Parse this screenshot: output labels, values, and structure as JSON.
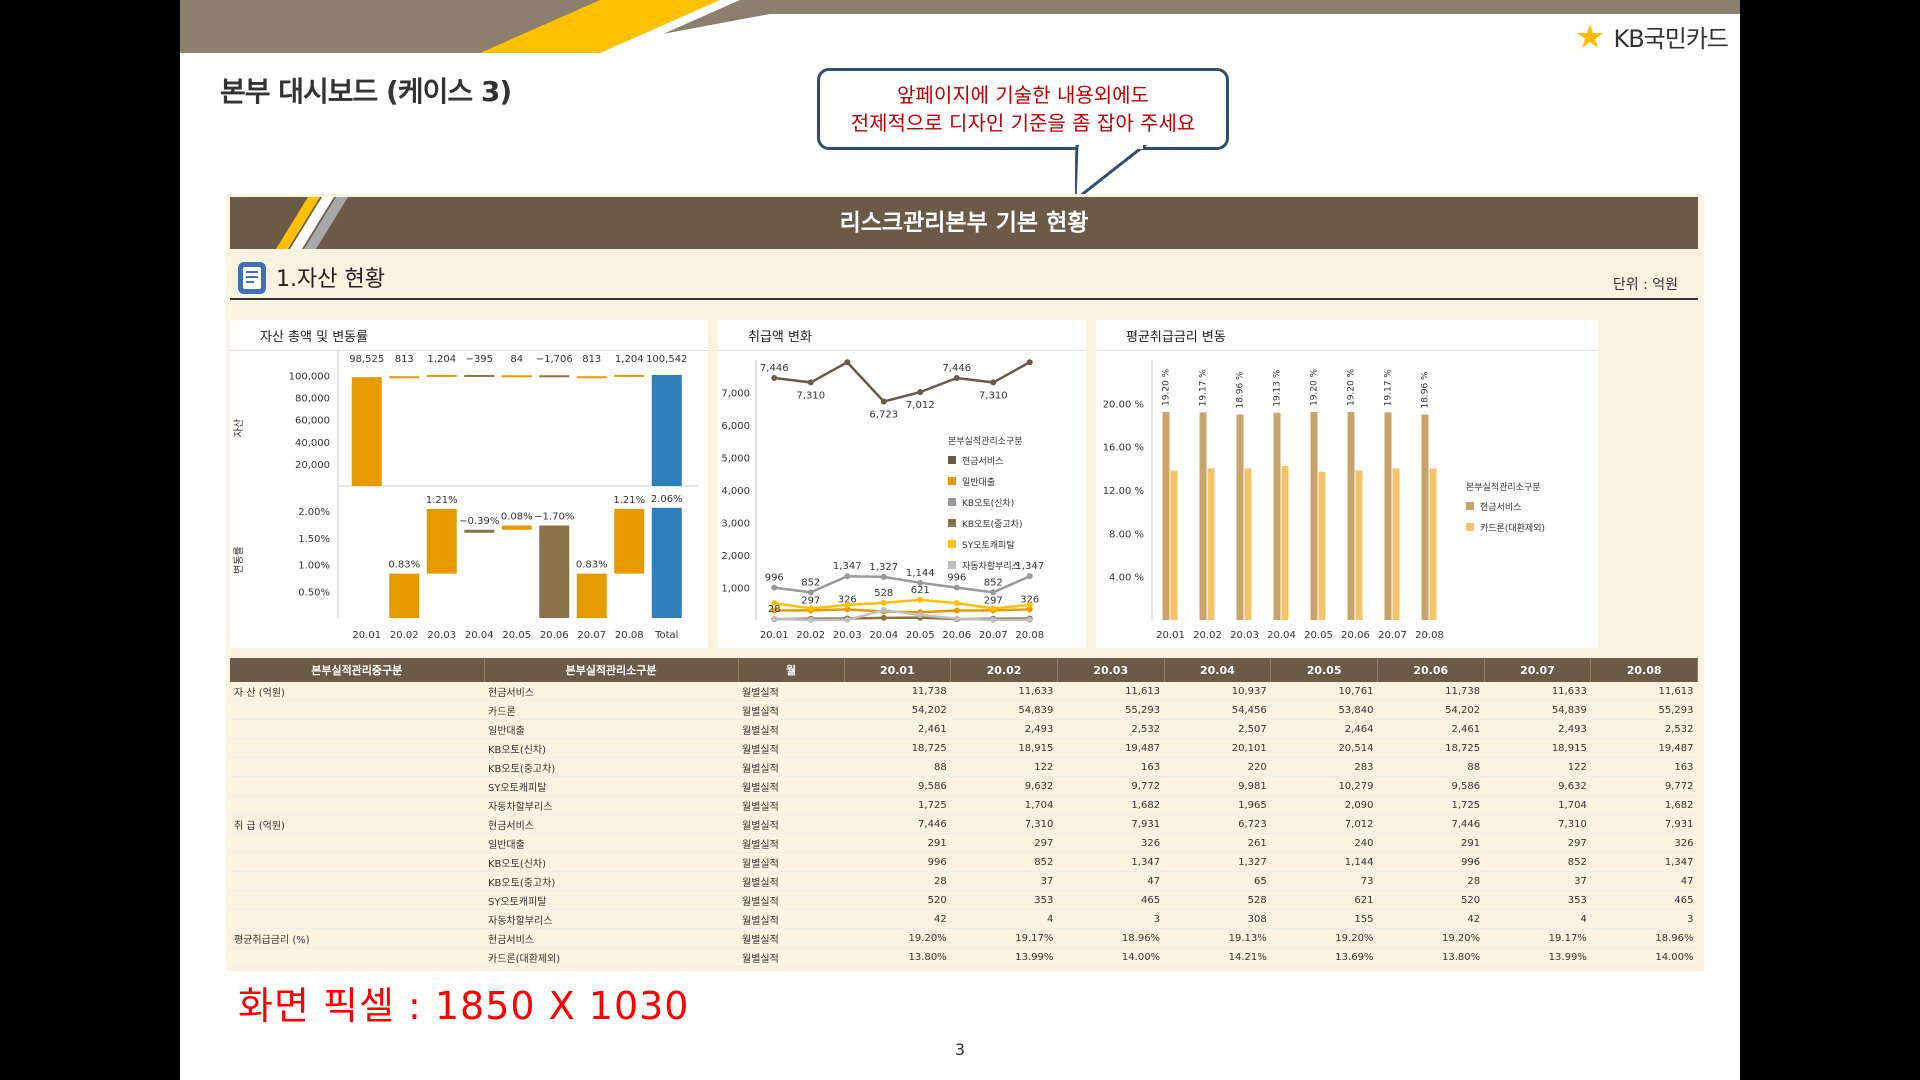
{
  "slide": {
    "title": "본부 대시보드 (케이스 3)",
    "logo": "KB국민카드",
    "callout_line1": "앞페이지에 기술한 내용외에도",
    "callout_line2": "전제적으로 디자인 기준을 좀 잡아 주세요",
    "note": "화면 픽셀 : 1850 X 1030",
    "page_number": "3"
  },
  "dashboard": {
    "title": "리스크관리본부 기본 현황",
    "section_title": "1.자산 현황",
    "unit": "단위 : 억원"
  },
  "colors": {
    "header_brown": "#6b5a45",
    "orange": "#e69a00",
    "blue": "#2e7fba",
    "brown": "#8b7349",
    "gold_bar": "#c9a46a",
    "light_orange": "#f5c46a"
  },
  "chart_data": [
    {
      "type": "bar",
      "title": "자산 총액 및 변동률",
      "categories": [
        "20.01",
        "20.02",
        "20.03",
        "20.04",
        "20.05",
        "20.06",
        "20.07",
        "20.08",
        "Total"
      ],
      "top_ylabel": "자산",
      "bottom_ylabel": "변동률",
      "top_yticks": [
        "100,000",
        "80,000",
        "60,000",
        "40,000",
        "20,000"
      ],
      "bottom_yticks": [
        "2.00%",
        "1.50%",
        "1.00%",
        "0.50%"
      ],
      "top_ylim": [
        0,
        105000
      ],
      "bottom_ylim": [
        0,
        2.3
      ],
      "top_values": [
        98525,
        813,
        1204,
        -395,
        84,
        -1706,
        813,
        1204,
        100542
      ],
      "top_labels": [
        "98,525",
        "813",
        "1,204",
        "−395",
        "84",
        "−1,706",
        "813",
        "1,204",
        "100,542"
      ],
      "bottom_lows": [
        0,
        0,
        0.83,
        2.04,
        1.65,
        0,
        0,
        0.83,
        0
      ],
      "bottom_highs": [
        0,
        0.83,
        2.04,
        1.65,
        1.73,
        1.73,
        0.83,
        2.04,
        2.06
      ],
      "bottom_labels": [
        "",
        "0.83%",
        "1.21%",
        "−0.39%",
        "0.08%",
        "−1.70%",
        "0.83%",
        "1.21%",
        "2.06%"
      ],
      "bottom_label_pos": [
        "",
        "below",
        "top",
        "top",
        "top",
        "top",
        "top",
        "top",
        "top"
      ]
    },
    {
      "type": "line",
      "title": "취급액 변화",
      "categories": [
        "20.01",
        "20.02",
        "20.03",
        "20.04",
        "20.05",
        "20.06",
        "20.07",
        "20.08"
      ],
      "ylim": [
        0,
        8000
      ],
      "yticks": [
        "7,000",
        "6,000",
        "5,000",
        "4,000",
        "3,000",
        "2,000",
        "1,000"
      ],
      "legend_title": "본부실적관리소구분",
      "series": [
        {
          "name": "현금서비스",
          "color": "#6b5a45",
          "values": [
            7446,
            7310,
            7931,
            6723,
            7012,
            7446,
            7310,
            7931
          ],
          "labels": [
            "7,446",
            "7,310",
            "",
            "6,723",
            "7,012",
            "7,446",
            "7,310",
            ""
          ]
        },
        {
          "name": "일반대출",
          "color": "#e69a00",
          "values": [
            291,
            297,
            326,
            261,
            240,
            291,
            297,
            326
          ],
          "labels": [
            "",
            "297",
            "326",
            "",
            "",
            "",
            "297",
            "326"
          ]
        },
        {
          "name": "KB오토(신차)",
          "color": "#999999",
          "values": [
            996,
            852,
            1347,
            1327,
            1144,
            996,
            852,
            1347
          ],
          "labels": [
            "996",
            "852",
            "1,347",
            "1,327",
            "1,144",
            "996",
            "852",
            "1,347"
          ]
        },
        {
          "name": "KB오토(중고차)",
          "color": "#8b7349",
          "values": [
            28,
            37,
            47,
            65,
            73,
            28,
            37,
            47
          ],
          "labels": [
            "28",
            "",
            "",
            "",
            "",
            "",
            "",
            ""
          ]
        },
        {
          "name": "SY오토캐피탈",
          "color": "#ffc000",
          "values": [
            520,
            353,
            465,
            528,
            621,
            520,
            353,
            465
          ],
          "labels": [
            "",
            "",
            "",
            "528",
            "621",
            "",
            "",
            ""
          ]
        },
        {
          "name": "자동차할부리스",
          "color": "#bfbfbf",
          "values": [
            42,
            4,
            3,
            308,
            155,
            42,
            4,
            3
          ],
          "labels": [
            "",
            "",
            "",
            "",
            "",
            "",
            "",
            ""
          ]
        }
      ]
    },
    {
      "type": "bar",
      "title": "평균취급금리 변동",
      "categories": [
        "20.01",
        "20.02",
        "20.03",
        "20.04",
        "20.05",
        "20.06",
        "20.07",
        "20.08"
      ],
      "ylim": [
        0,
        24
      ],
      "yticks": [
        "20.00 %",
        "16.00 %",
        "12.00 %",
        "8.00 %",
        "4.00 %"
      ],
      "legend_title": "본부실적관리소구분",
      "series": [
        {
          "name": "현금서비스",
          "color": "#c9a46a",
          "values": [
            19.2,
            19.17,
            18.96,
            19.13,
            19.2,
            19.2,
            19.17,
            18.96
          ],
          "labels": [
            "19.20 %",
            "19.17 %",
            "18.96 %",
            "19.13 %",
            "19.20 %",
            "19.20 %",
            "19.17 %",
            "18.96 %"
          ]
        },
        {
          "name": "카드론(대환제외)",
          "color": "#f5c46a",
          "values": [
            13.8,
            13.99,
            14.0,
            14.21,
            13.69,
            13.8,
            13.99,
            14.0
          ],
          "labels": [
            "",
            "",
            "",
            "",
            "",
            "",
            "",
            ""
          ]
        }
      ]
    }
  ],
  "table": {
    "headers": [
      "본부실적관리중구분",
      "본부실적관리소구분",
      "월",
      "20.01",
      "20.02",
      "20.03",
      "20.04",
      "20.05",
      "20.06",
      "20.07",
      "20.08"
    ],
    "rows": [
      {
        "group": "자 산 (억원)",
        "sub": "현금서비스",
        "m": "월별실적",
        "v": [
          "11,738",
          "11,633",
          "11,613",
          "10,937",
          "10,761",
          "11,738",
          "11,633",
          "11,613"
        ]
      },
      {
        "group": "",
        "sub": "카드론",
        "m": "월별실적",
        "v": [
          "54,202",
          "54,839",
          "55,293",
          "54,456",
          "53,840",
          "54,202",
          "54,839",
          "55,293"
        ]
      },
      {
        "group": "",
        "sub": "일반대출",
        "m": "월별실적",
        "v": [
          "2,461",
          "2,493",
          "2,532",
          "2,507",
          "2,464",
          "2,461",
          "2,493",
          "2,532"
        ]
      },
      {
        "group": "",
        "sub": "KB오토(신차)",
        "m": "월별실적",
        "v": [
          "18,725",
          "18,915",
          "19,487",
          "20,101",
          "20,514",
          "18,725",
          "18,915",
          "19,487"
        ]
      },
      {
        "group": "",
        "sub": "KB오토(중고차)",
        "m": "월별실적",
        "v": [
          "88",
          "122",
          "163",
          "220",
          "283",
          "88",
          "122",
          "163"
        ]
      },
      {
        "group": "",
        "sub": "SY오토캐피탈",
        "m": "월별실적",
        "v": [
          "9,586",
          "9,632",
          "9,772",
          "9,981",
          "10,279",
          "9,586",
          "9,632",
          "9,772"
        ]
      },
      {
        "group": "",
        "sub": "자동차할부리스",
        "m": "월별실적",
        "v": [
          "1,725",
          "1,704",
          "1,682",
          "1,965",
          "2,090",
          "1,725",
          "1,704",
          "1,682"
        ]
      },
      {
        "group": "취 급 (억원)",
        "sub": "현금서비스",
        "m": "월별실적",
        "v": [
          "7,446",
          "7,310",
          "7,931",
          "6,723",
          "7,012",
          "7,446",
          "7,310",
          "7,931"
        ]
      },
      {
        "group": "",
        "sub": "일반대출",
        "m": "월별실적",
        "v": [
          "291",
          "297",
          "326",
          "261",
          "240",
          "291",
          "297",
          "326"
        ]
      },
      {
        "group": "",
        "sub": "KB오토(신차)",
        "m": "월별실적",
        "v": [
          "996",
          "852",
          "1,347",
          "1,327",
          "1,144",
          "996",
          "852",
          "1,347"
        ]
      },
      {
        "group": "",
        "sub": "KB오토(중고차)",
        "m": "월별실적",
        "v": [
          "28",
          "37",
          "47",
          "65",
          "73",
          "28",
          "37",
          "47"
        ]
      },
      {
        "group": "",
        "sub": "SY오토캐피탈",
        "m": "월별실적",
        "v": [
          "520",
          "353",
          "465",
          "528",
          "621",
          "520",
          "353",
          "465"
        ]
      },
      {
        "group": "",
        "sub": "자동차할부리스",
        "m": "월별실적",
        "v": [
          "42",
          "4",
          "3",
          "308",
          "155",
          "42",
          "4",
          "3"
        ]
      },
      {
        "group": "평균취급금리 (%)",
        "sub": "현금서비스",
        "m": "월별실적",
        "v": [
          "19.20%",
          "19.17%",
          "18.96%",
          "19.13%",
          "19.20%",
          "19.20%",
          "19.17%",
          "18.96%"
        ]
      },
      {
        "group": "",
        "sub": "카드론(대환제외)",
        "m": "월별실적",
        "v": [
          "13.80%",
          "13.99%",
          "14.00%",
          "14.21%",
          "13.69%",
          "13.80%",
          "13.99%",
          "14.00%"
        ]
      }
    ]
  }
}
